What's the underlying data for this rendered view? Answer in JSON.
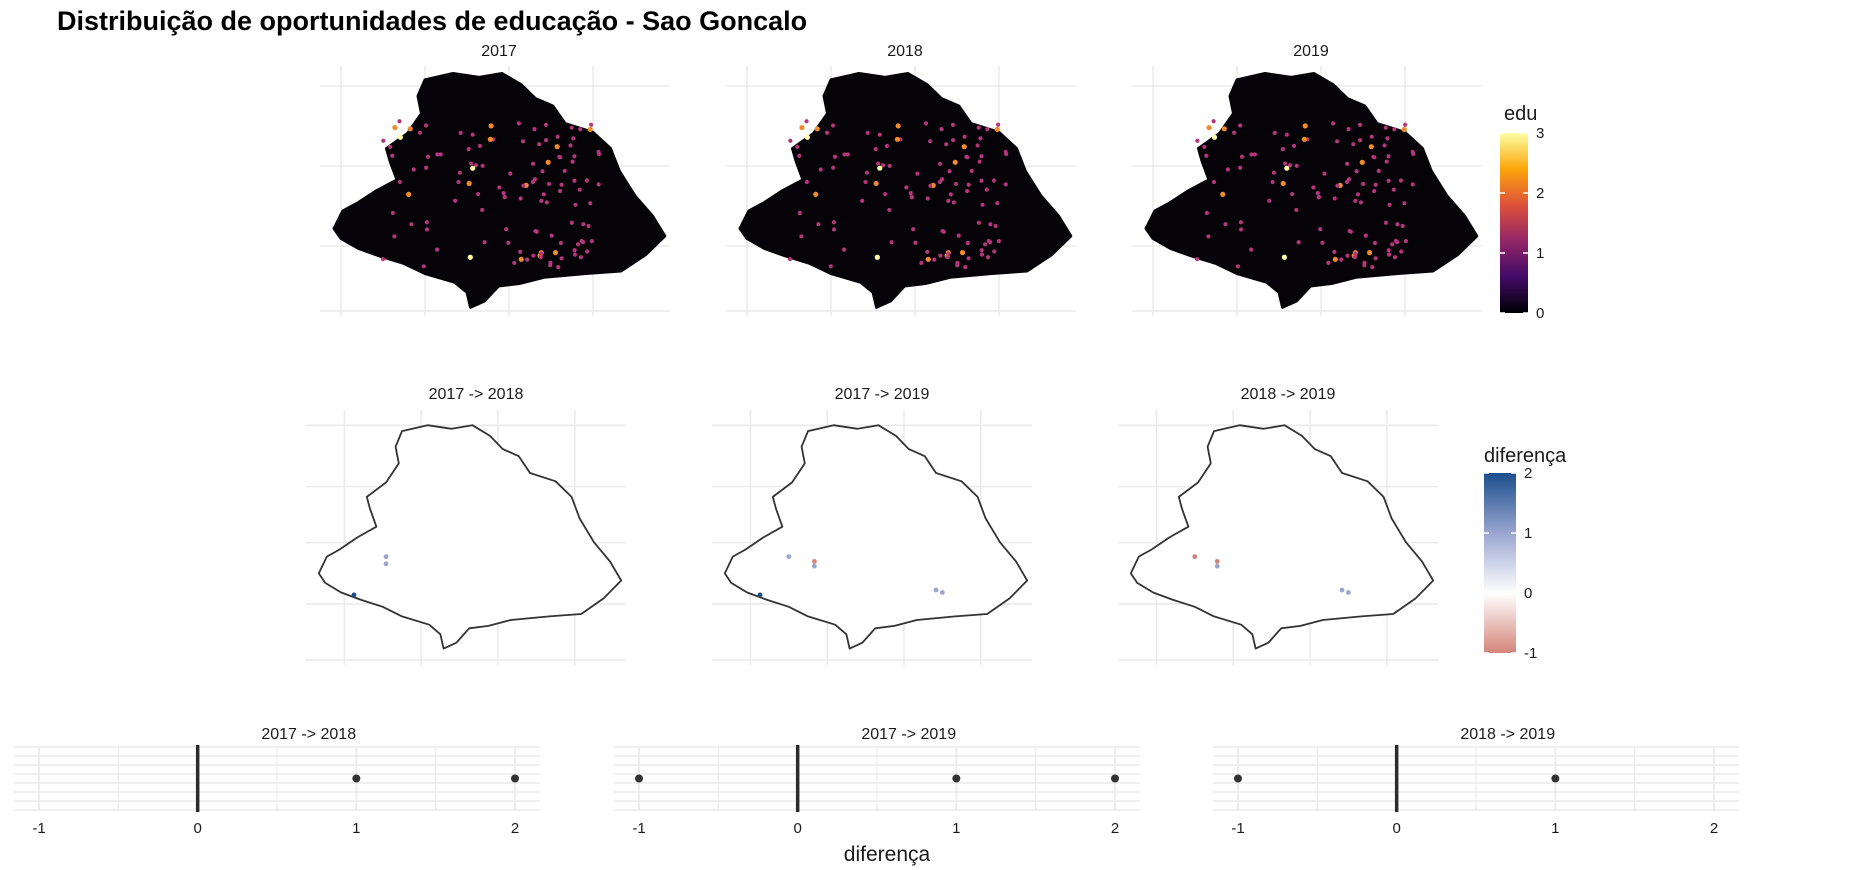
{
  "title": "Distribuição de oportunidades de educação - Sao Goncalo",
  "colors": {
    "map_fill": "#050307",
    "edu_low": "#4a0c6b",
    "edu_mid": "#b5367a",
    "edu_orange": "#f28b2c",
    "edu_high": "#fcffa4",
    "diff_pos": "#1b4e8d",
    "diff_light": "#9aa6d0",
    "diff_neg": "#d4857a",
    "grid": "#ebebeb",
    "outline": "#333333",
    "point": "#333333",
    "zero_line": "#2b2b2b"
  },
  "chart_data": [
    {
      "type": "heatmap",
      "id": "edu-maps",
      "panels": [
        "2017",
        "2018",
        "2019"
      ],
      "legend": {
        "title": "edu",
        "ticks": [
          "3",
          "2",
          "1",
          "0"
        ],
        "range": [
          0,
          3
        ],
        "colors": [
          "#000004",
          "#420a68",
          "#932667",
          "#dd513a",
          "#fca50a",
          "#fcffa4"
        ]
      }
    },
    {
      "type": "heatmap",
      "id": "diff-maps",
      "panels": [
        "2017 -> 2018",
        "2017 -> 2019",
        "2018 -> 2019"
      ],
      "legend": {
        "title": "diferença",
        "ticks": [
          "2",
          "1",
          "0",
          "-1"
        ],
        "range": [
          -1,
          2
        ]
      },
      "points": [
        [
          {
            "x": 0.25,
            "y": 0.58,
            "value": 1
          },
          {
            "x": 0.25,
            "y": 0.61,
            "value": 1
          },
          {
            "x": 0.15,
            "y": 0.74,
            "value": 2
          }
        ],
        [
          {
            "x": 0.24,
            "y": 0.58,
            "value": 1
          },
          {
            "x": 0.32,
            "y": 0.6,
            "value": -1
          },
          {
            "x": 0.32,
            "y": 0.62,
            "value": 1
          },
          {
            "x": 0.15,
            "y": 0.74,
            "value": 2
          },
          {
            "x": 0.7,
            "y": 0.72,
            "value": 1
          },
          {
            "x": 0.72,
            "y": 0.73,
            "value": 1
          }
        ],
        [
          {
            "x": 0.24,
            "y": 0.58,
            "value": -1
          },
          {
            "x": 0.31,
            "y": 0.6,
            "value": -1
          },
          {
            "x": 0.31,
            "y": 0.62,
            "value": 1
          },
          {
            "x": 0.7,
            "y": 0.72,
            "value": 1
          },
          {
            "x": 0.72,
            "y": 0.73,
            "value": 1
          }
        ]
      ]
    },
    {
      "type": "scatter",
      "id": "diff-strips",
      "xlabel": "diferença",
      "xlim": [
        -1,
        2
      ],
      "xticks": [
        "-1",
        "0",
        "1",
        "2"
      ],
      "series": [
        {
          "name": "2017 -> 2018",
          "values": [
            1,
            2
          ]
        },
        {
          "name": "2017 -> 2019",
          "values": [
            -1,
            1,
            2
          ]
        },
        {
          "name": "2018 -> 2019",
          "values": [
            -1,
            1
          ]
        }
      ]
    }
  ]
}
